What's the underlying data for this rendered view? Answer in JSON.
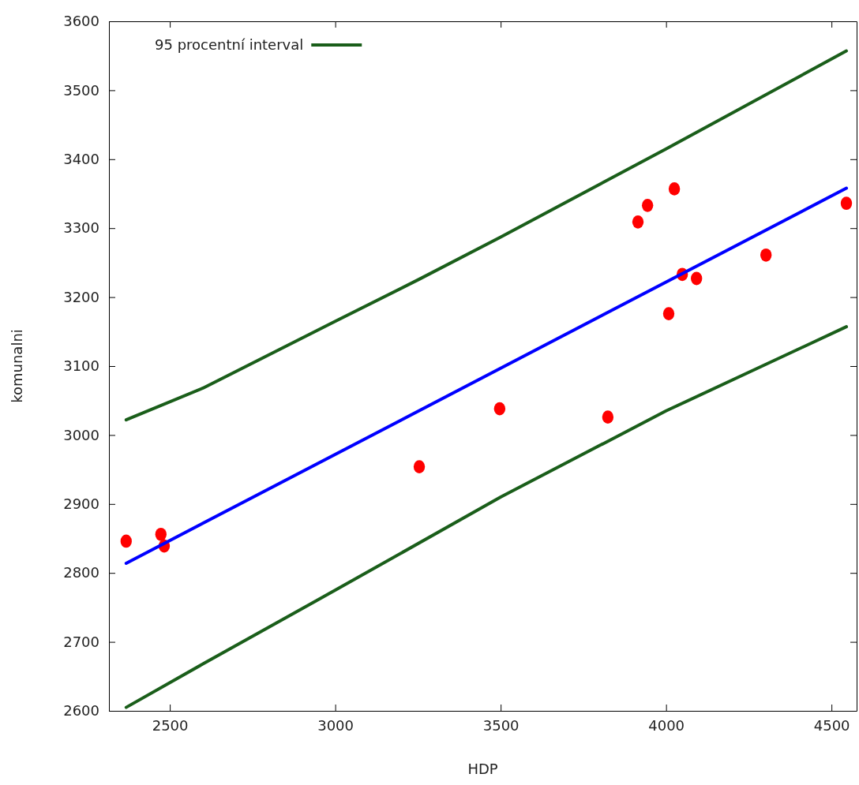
{
  "chart_data": {
    "type": "scatter",
    "xlabel": "HDP",
    "ylabel": "komunalni",
    "xlim": [
      2316,
      4576
    ],
    "xticks": [
      2500,
      3000,
      3500,
      4000,
      4500
    ],
    "ylim": [
      2600,
      3600
    ],
    "yticks": [
      2600,
      2700,
      2800,
      2900,
      3000,
      3100,
      3200,
      3300,
      3400,
      3500,
      3600
    ],
    "grid": false,
    "legend": "top left",
    "series": [
      {
        "color": "#ff0000",
        "marker": "circle",
        "x": [
          2368,
          2473,
          2483,
          3254,
          3497,
          3824,
          3915,
          3944,
          4025,
          4008,
          4049,
          4092,
          4302,
          4545
        ],
        "values": [
          2846,
          2856,
          2839,
          2954,
          3038,
          3026,
          3309,
          3333,
          3357,
          3176,
          3233,
          3227,
          3261,
          3336
        ]
      },
      {
        "type": "line",
        "color": "#0000ff",
        "line_style": "solid",
        "x": [
          2368,
          4545
        ],
        "values": [
          2814,
          3358
        ]
      },
      {
        "type": "line",
        "name": "95 procentní interval",
        "color": "#1a5e1a",
        "line_style": "solid",
        "x": [
          2368,
          2600,
          3000,
          3254,
          3500,
          4000,
          4545
        ],
        "values": [
          3022,
          3068,
          3165,
          3226,
          3287,
          3415,
          3557
        ]
      },
      {
        "type": "line",
        "color": "#1a5e1a",
        "line_style": "solid",
        "x": [
          2368,
          2600,
          3000,
          3500,
          4000,
          4545
        ],
        "values": [
          2605,
          2668,
          2775,
          2910,
          3035,
          3157
        ]
      }
    ]
  }
}
